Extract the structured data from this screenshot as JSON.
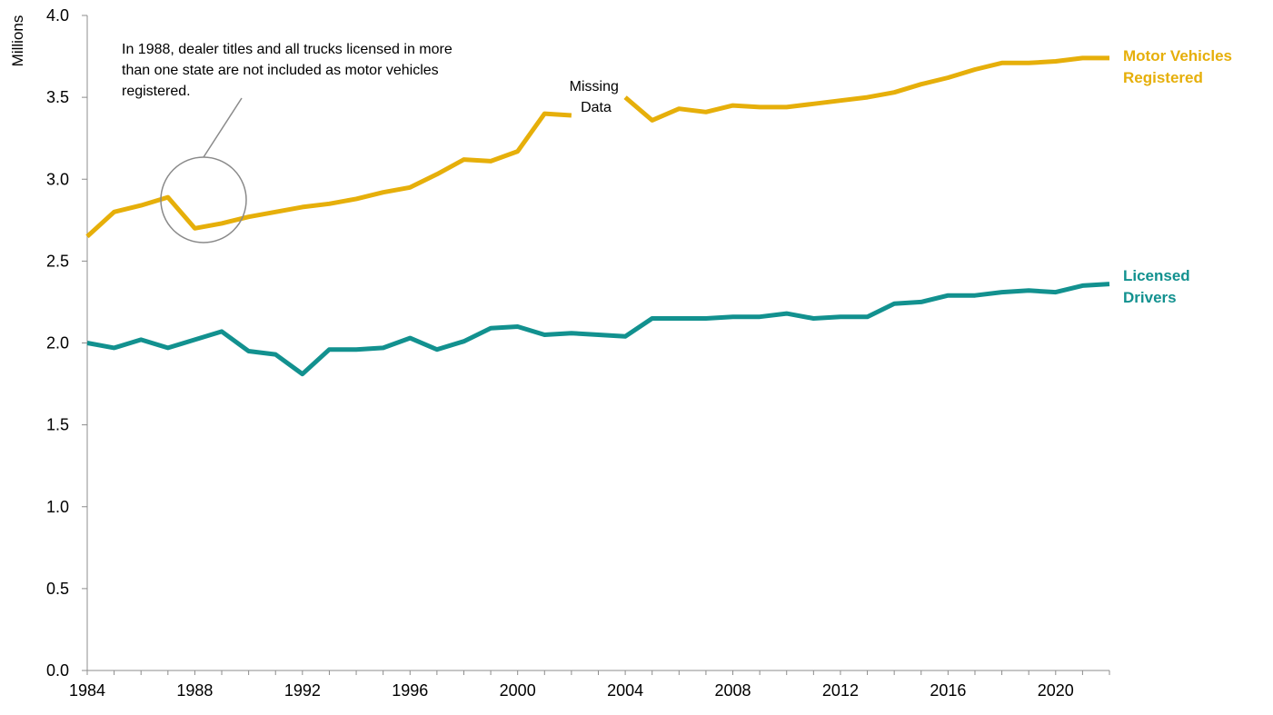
{
  "chart_data": {
    "type": "line",
    "ylabel": "Millions",
    "ylim": [
      0,
      4.0
    ],
    "xlim": [
      1984,
      2022
    ],
    "y_ticks": [
      {
        "value": 0.0,
        "label": "0.0"
      },
      {
        "value": 0.5,
        "label": "0.5"
      },
      {
        "value": 1.0,
        "label": "1.0"
      },
      {
        "value": 1.5,
        "label": "1.5"
      },
      {
        "value": 2.0,
        "label": "2.0"
      },
      {
        "value": 2.5,
        "label": "2.5"
      },
      {
        "value": 3.0,
        "label": "3.0"
      },
      {
        "value": 3.5,
        "label": "3.5"
      },
      {
        "value": 4.0,
        "label": "4.0"
      }
    ],
    "x_ticks": [
      {
        "value": 1984,
        "label": "1984"
      },
      {
        "value": 1988,
        "label": "1988"
      },
      {
        "value": 1992,
        "label": "1992"
      },
      {
        "value": 1996,
        "label": "1996"
      },
      {
        "value": 2000,
        "label": "2000"
      },
      {
        "value": 2004,
        "label": "2004"
      },
      {
        "value": 2008,
        "label": "2008"
      },
      {
        "value": 2012,
        "label": "2012"
      },
      {
        "value": 2016,
        "label": "2016"
      },
      {
        "value": 2020,
        "label": "2020"
      }
    ],
    "grid": false,
    "series": [
      {
        "name": "Motor Vehicles Registered",
        "label_lines": [
          "Motor Vehicles",
          "Registered"
        ],
        "color": "#E6AF0A",
        "x": [
          1984,
          1985,
          1986,
          1987,
          1988,
          1989,
          1990,
          1991,
          1992,
          1993,
          1994,
          1995,
          1996,
          1997,
          1998,
          1999,
          2000,
          2001,
          2002,
          2003,
          2004,
          2005,
          2006,
          2007,
          2008,
          2009,
          2010,
          2011,
          2012,
          2013,
          2014,
          2015,
          2016,
          2017,
          2018,
          2019,
          2020,
          2021,
          2022
        ],
        "values": [
          2.65,
          2.8,
          2.84,
          2.89,
          2.7,
          2.73,
          2.77,
          2.8,
          2.83,
          2.85,
          2.88,
          2.92,
          2.95,
          3.03,
          3.12,
          3.11,
          3.17,
          3.4,
          3.39,
          null,
          3.5,
          3.36,
          3.43,
          3.41,
          3.45,
          3.44,
          3.44,
          3.46,
          3.48,
          3.5,
          3.53,
          3.58,
          3.62,
          3.67,
          3.71,
          3.71,
          3.72,
          3.74,
          3.74
        ]
      },
      {
        "name": "Licensed Drivers",
        "label_lines": [
          "Licensed",
          "Drivers"
        ],
        "color": "#12918F",
        "x": [
          1984,
          1985,
          1986,
          1987,
          1988,
          1989,
          1990,
          1991,
          1992,
          1993,
          1994,
          1995,
          1996,
          1997,
          1998,
          1999,
          2000,
          2001,
          2002,
          2003,
          2004,
          2005,
          2006,
          2007,
          2008,
          2009,
          2010,
          2011,
          2012,
          2013,
          2014,
          2015,
          2016,
          2017,
          2018,
          2019,
          2020,
          2021,
          2022
        ],
        "values": [
          2.0,
          1.97,
          2.02,
          1.97,
          2.02,
          2.07,
          1.95,
          1.93,
          1.81,
          1.96,
          1.96,
          1.97,
          2.03,
          1.96,
          2.01,
          2.09,
          2.1,
          2.05,
          2.06,
          2.05,
          2.04,
          2.15,
          2.15,
          2.15,
          2.16,
          2.16,
          2.18,
          2.15,
          2.16,
          2.16,
          2.24,
          2.25,
          2.29,
          2.29,
          2.31,
          2.32,
          2.31,
          2.35,
          2.36
        ]
      }
    ],
    "annotations": {
      "note_lines": [
        "In 1988, dealer titles and all trucks licensed in more",
        "than one state are not included as motor vehicles",
        "registered."
      ],
      "missing_lines": [
        "Missing",
        "Data"
      ]
    }
  }
}
